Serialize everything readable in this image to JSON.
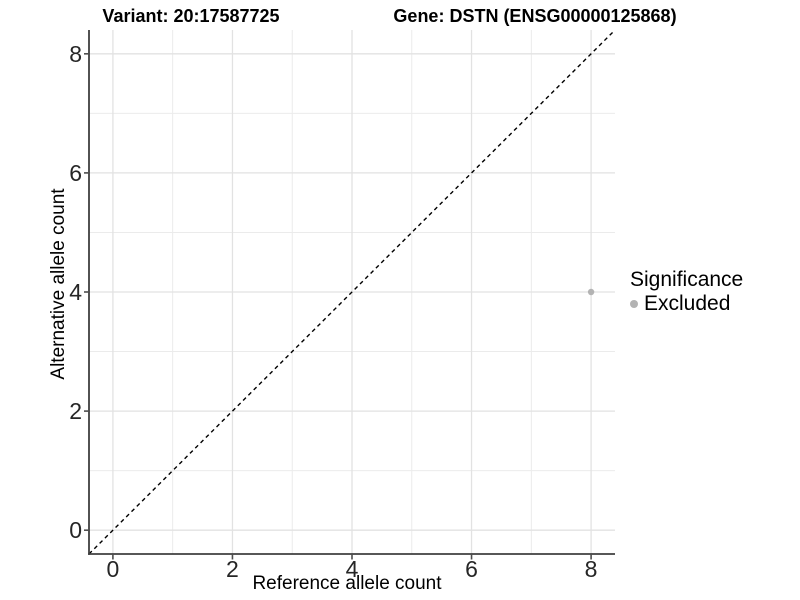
{
  "chart_data": {
    "type": "scatter",
    "titles": {
      "left": "Variant: 20:17587725",
      "right": "Gene: DSTN (ENSG00000125868)"
    },
    "xlabel": "Reference allele count",
    "ylabel": "Alternative allele count",
    "xlim": [
      -0.4,
      8.4
    ],
    "ylim": [
      -0.4,
      8.4
    ],
    "x_major_ticks": [
      0,
      2,
      4,
      6,
      8
    ],
    "y_major_ticks": [
      0,
      2,
      4,
      6,
      8
    ],
    "x_minor_ticks": [
      1,
      3,
      5,
      7
    ],
    "y_minor_ticks": [
      1,
      3,
      5,
      7
    ],
    "grid": "major+minor",
    "reference_line": {
      "type": "identity",
      "style": "dashed",
      "color": "#000000",
      "from": [
        -0.4,
        -0.4
      ],
      "to": [
        8.4,
        8.4
      ]
    },
    "series": [
      {
        "name": "Excluded",
        "marker": "circle",
        "color": "#b3b3b3",
        "points": [
          [
            8,
            4
          ]
        ]
      }
    ],
    "legend": {
      "title": "Significance",
      "position": "right",
      "entries": [
        {
          "label": "Excluded",
          "color": "#b3b3b3",
          "marker": "circle"
        }
      ]
    }
  },
  "colors": {
    "background": "#ffffff",
    "grid_major": "#e2e2e2",
    "grid_minor": "#ebebeb",
    "axis_line": "#3f3f3f",
    "tick_mark": "#4d4d4d",
    "tick_text": "#262626",
    "point_excluded": "#b3b3b3",
    "reference_line": "#000000"
  }
}
